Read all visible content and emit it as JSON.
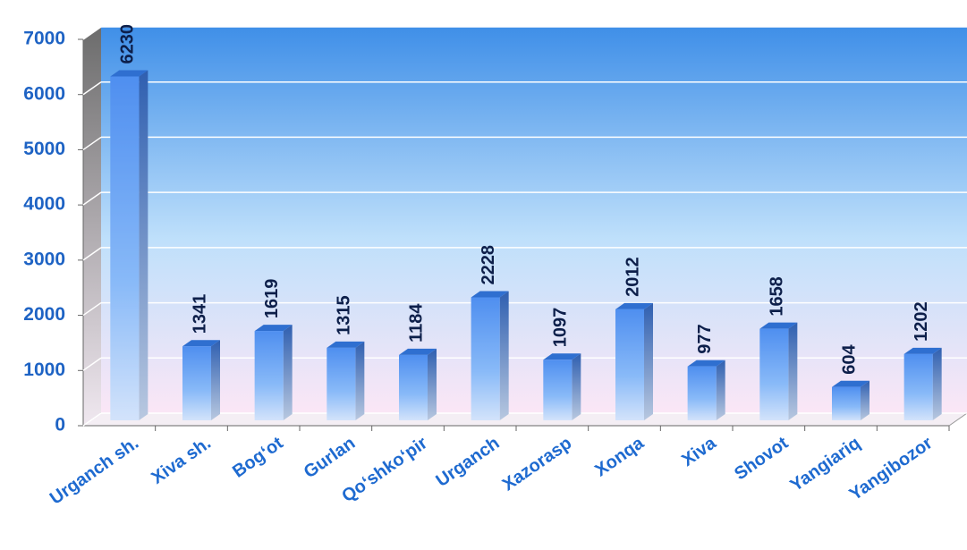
{
  "chart_data": {
    "type": "bar",
    "categories": [
      "Urganch sh.",
      "Xiva sh.",
      "Bog‘ot",
      "Gurlan",
      "Qo‘shko‘pir",
      "Urganch",
      "Xazorasp",
      "Xonqa",
      "Xiva",
      "Shovot",
      "Yangiariq",
      "Yangibozor"
    ],
    "values": [
      6230,
      1341,
      1619,
      1315,
      1184,
      2228,
      1097,
      2012,
      977,
      1658,
      604,
      1202
    ],
    "color": "#4f8ff0",
    "ylim": [
      0,
      7000
    ],
    "yticks": [
      0,
      1000,
      2000,
      3000,
      4000,
      5000,
      6000,
      7000
    ],
    "grid": true
  }
}
